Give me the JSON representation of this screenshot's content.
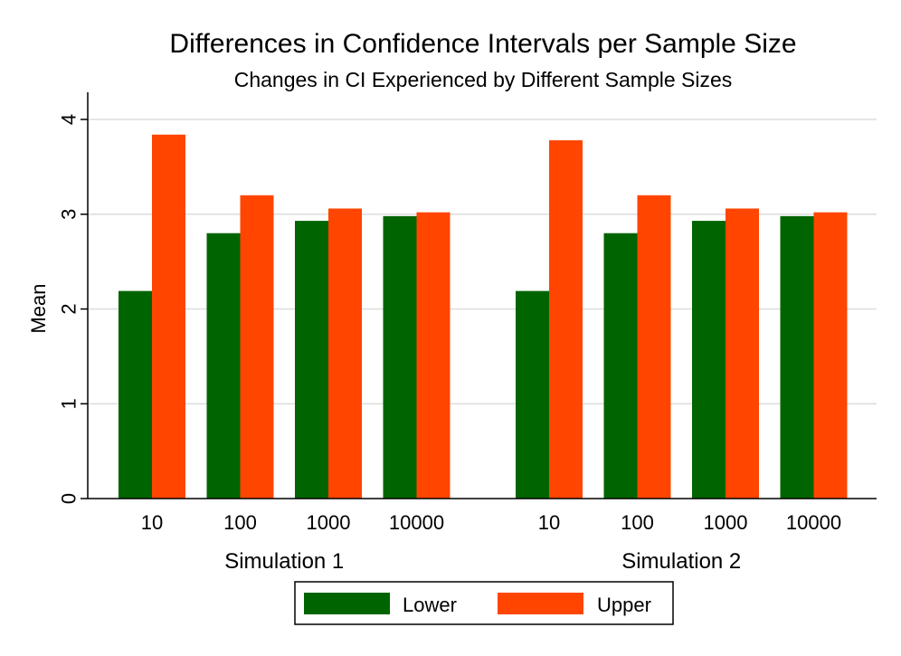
{
  "chart_data": {
    "type": "bar",
    "title": "Differences in Confidence Intervals per Sample Size",
    "subtitle": "Changes in CI Experienced by Different Sample Sizes",
    "xlabel": "",
    "ylabel": "Mean",
    "ylim": [
      0,
      4.2
    ],
    "yticks": [
      "0",
      "1",
      "2",
      "3",
      "4"
    ],
    "grid": true,
    "legend_position": "bottom",
    "groups": [
      {
        "name": "Simulation 1",
        "categories": [
          "10",
          "100",
          "1000",
          "10000"
        ],
        "series": [
          {
            "name": "Lower",
            "color": "#006400",
            "values": [
              2.19,
              2.8,
              2.93,
              2.98
            ]
          },
          {
            "name": "Upper",
            "color": "#ff4500",
            "values": [
              3.84,
              3.2,
              3.06,
              3.02
            ]
          }
        ]
      },
      {
        "name": "Simulation 2",
        "categories": [
          "10",
          "100",
          "1000",
          "10000"
        ],
        "series": [
          {
            "name": "Lower",
            "color": "#006400",
            "values": [
              2.19,
              2.8,
              2.93,
              2.98
            ]
          },
          {
            "name": "Upper",
            "color": "#ff4500",
            "values": [
              3.78,
              3.2,
              3.06,
              3.02
            ]
          }
        ]
      }
    ],
    "legend": [
      {
        "name": "Lower",
        "color": "#006400"
      },
      {
        "name": "Upper",
        "color": "#ff4500"
      }
    ]
  }
}
